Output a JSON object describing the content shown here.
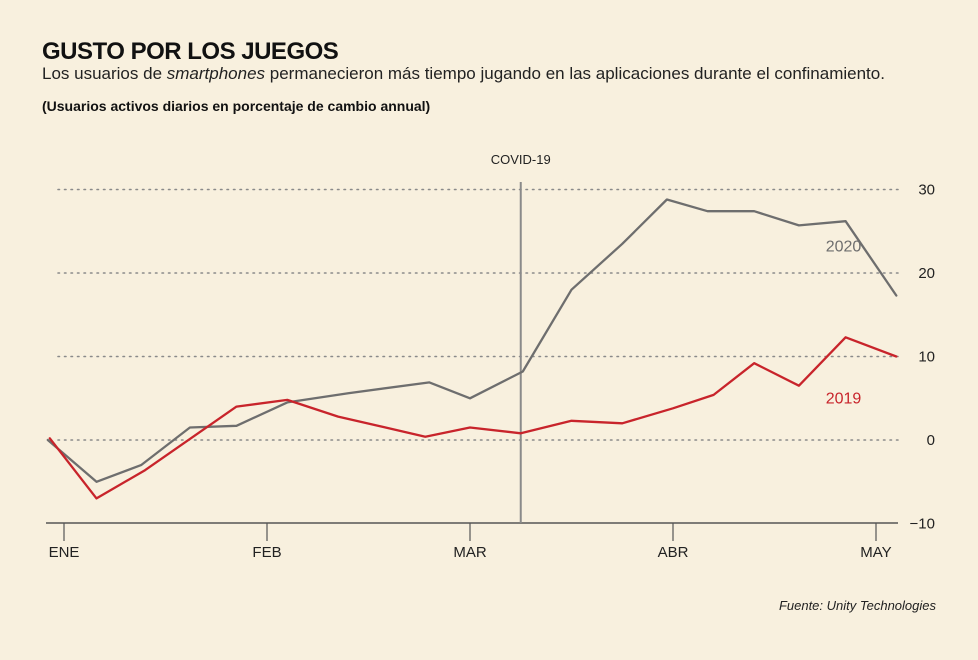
{
  "title": "GUSTO POR LOS JUEGOS",
  "subtitle_prefix": "Los usuarios de ",
  "subtitle_emphasis": "smartphones",
  "subtitle_suffix": " permanecieron más tiempo jugando en las aplicaciones durante el confinamiento.",
  "units_note": "(Usuarios activos diarios en porcentaje de cambio annual)",
  "source": "Fuente: Unity Technologies",
  "chart_data": {
    "type": "line",
    "title": "GUSTO POR LOS JUEGOS",
    "ylabel": "Usuarios activos diarios en porcentaje de cambio annual",
    "xlabel": "",
    "ylim": [
      -10,
      30
    ],
    "xlim": [
      0,
      4.1
    ],
    "yticks": [
      30,
      20,
      10,
      0,
      -10
    ],
    "xticks": [
      {
        "label": "ENE",
        "x": 0
      },
      {
        "label": "FEB",
        "x": 1
      },
      {
        "label": "MAR",
        "x": 2
      },
      {
        "label": "ABR",
        "x": 3
      },
      {
        "label": "MAY",
        "x": 4
      }
    ],
    "grid": true,
    "annotation": {
      "label": "COVID-19",
      "x": 2.25
    },
    "series": [
      {
        "name": "2020",
        "color": "#6e6e6e",
        "points": [
          [
            -0.08,
            0
          ],
          [
            0.16,
            -5
          ],
          [
            0.38,
            -3
          ],
          [
            0.62,
            1.5
          ],
          [
            0.85,
            1.7
          ],
          [
            1.1,
            4.5
          ],
          [
            1.4,
            5.6
          ],
          [
            1.8,
            6.9
          ],
          [
            2.0,
            5.0
          ],
          [
            2.26,
            8.2
          ],
          [
            2.5,
            18
          ],
          [
            2.75,
            23.5
          ],
          [
            2.97,
            28.8
          ],
          [
            3.17,
            27.4
          ],
          [
            3.4,
            27.4
          ],
          [
            3.62,
            25.7
          ],
          [
            3.85,
            26.2
          ],
          [
            4.1,
            17.3
          ]
        ]
      },
      {
        "name": "2019",
        "color": "#c8242b",
        "points": [
          [
            -0.07,
            0.2
          ],
          [
            0.16,
            -7
          ],
          [
            0.4,
            -3.6
          ],
          [
            0.85,
            4
          ],
          [
            1.1,
            4.8
          ],
          [
            1.35,
            2.8
          ],
          [
            1.78,
            0.4
          ],
          [
            2.0,
            1.5
          ],
          [
            2.25,
            0.8
          ],
          [
            2.5,
            2.3
          ],
          [
            2.75,
            2.0
          ],
          [
            3.0,
            3.8
          ],
          [
            3.2,
            5.4
          ],
          [
            3.4,
            9.2
          ],
          [
            3.62,
            6.5
          ],
          [
            3.85,
            12.3
          ],
          [
            4.1,
            10
          ]
        ]
      }
    ]
  }
}
